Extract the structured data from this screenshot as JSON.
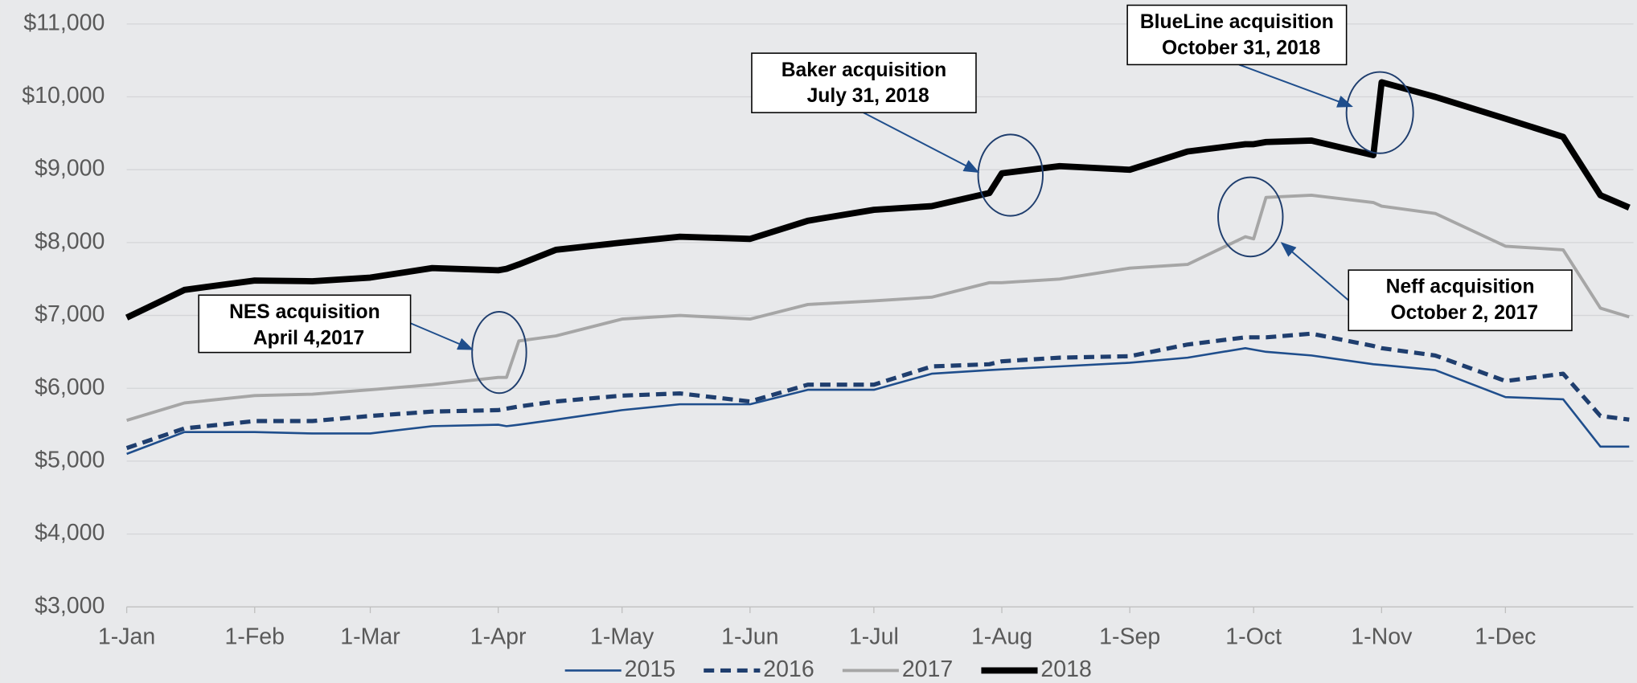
{
  "chart_data": {
    "type": "line",
    "x": [
      1,
      15,
      32,
      46,
      60,
      75,
      91,
      93,
      96,
      105,
      121,
      135,
      152,
      166,
      182,
      196,
      210,
      213,
      227,
      244,
      258,
      272,
      274,
      277,
      288,
      303,
      305,
      318,
      335,
      349,
      358,
      365
    ],
    "xlim": [
      1,
      366
    ],
    "xticks": [
      {
        "value": 1,
        "label": "1-Jan"
      },
      {
        "value": 32,
        "label": "1-Feb"
      },
      {
        "value": 60,
        "label": "1-Mar"
      },
      {
        "value": 91,
        "label": "1-Apr"
      },
      {
        "value": 121,
        "label": "1-May"
      },
      {
        "value": 152,
        "label": "1-Jun"
      },
      {
        "value": 182,
        "label": "1-Jul"
      },
      {
        "value": 213,
        "label": "1-Aug"
      },
      {
        "value": 244,
        "label": "1-Sep"
      },
      {
        "value": 274,
        "label": "1-Oct"
      },
      {
        "value": 305,
        "label": "1-Nov"
      },
      {
        "value": 335,
        "label": "1-Dec"
      }
    ],
    "ylim": [
      3000,
      11000
    ],
    "yticks": [
      {
        "value": 3000,
        "label": "$3,000"
      },
      {
        "value": 4000,
        "label": "$4,000"
      },
      {
        "value": 5000,
        "label": "$5,000"
      },
      {
        "value": 6000,
        "label": "$6,000"
      },
      {
        "value": 7000,
        "label": "$7,000"
      },
      {
        "value": 8000,
        "label": "$8,000"
      },
      {
        "value": 9000,
        "label": "$9,000"
      },
      {
        "value": 10000,
        "label": "$10,000"
      },
      {
        "value": 11000,
        "label": "$11,000"
      }
    ],
    "grid": true,
    "legend": "bottom",
    "series": [
      {
        "name": "2015",
        "color": "#1f4e8c",
        "dashed": false,
        "values": [
          5100,
          5400,
          5400,
          5380,
          5380,
          5480,
          5500,
          5480,
          5500,
          5570,
          5700,
          5780,
          5780,
          5980,
          5980,
          6200,
          6250,
          6260,
          6300,
          6350,
          6420,
          6550,
          6530,
          6500,
          6450,
          6330,
          6320,
          6250,
          5880,
          5850,
          5200,
          5200
        ]
      },
      {
        "name": "2016",
        "color": "#1f3e6e",
        "dashed": true,
        "values": [
          5180,
          5450,
          5550,
          5550,
          5620,
          5680,
          5700,
          5720,
          5750,
          5820,
          5900,
          5930,
          5820,
          6050,
          6050,
          6300,
          6330,
          6370,
          6420,
          6440,
          6600,
          6700,
          6700,
          6700,
          6750,
          6580,
          6550,
          6450,
          6100,
          6200,
          5620,
          5570
        ]
      },
      {
        "name": "2017",
        "color": "#a6a6a6",
        "dashed": false,
        "values": [
          5560,
          5800,
          5900,
          5920,
          5980,
          6050,
          6150,
          6150,
          6650,
          6720,
          6950,
          7000,
          6950,
          7150,
          7200,
          7250,
          7450,
          7450,
          7500,
          7650,
          7700,
          8080,
          8050,
          8620,
          8650,
          8550,
          8500,
          8400,
          7950,
          7900,
          7100,
          6980
        ]
      },
      {
        "name": "2018",
        "color": "#000000",
        "dashed": false,
        "values": [
          6970,
          7350,
          7480,
          7470,
          7520,
          7650,
          7620,
          7640,
          7700,
          7900,
          8000,
          8080,
          8050,
          8300,
          8450,
          8500,
          8680,
          8950,
          9050,
          9000,
          9250,
          9350,
          9350,
          9380,
          9400,
          9200,
          10200,
          10000,
          9700,
          9450,
          8650,
          8480
        ]
      }
    ],
    "annotations": [
      {
        "text": [
          "NES acquisition",
          "April 4,2017"
        ]
      },
      {
        "text": [
          "Baker acquisition",
          "July 31, 2018"
        ]
      },
      {
        "text": [
          "BlueLine acquisition",
          "October 31, 2018"
        ]
      },
      {
        "text": [
          "Neff acquisition",
          "October 2, 2017"
        ]
      }
    ]
  }
}
